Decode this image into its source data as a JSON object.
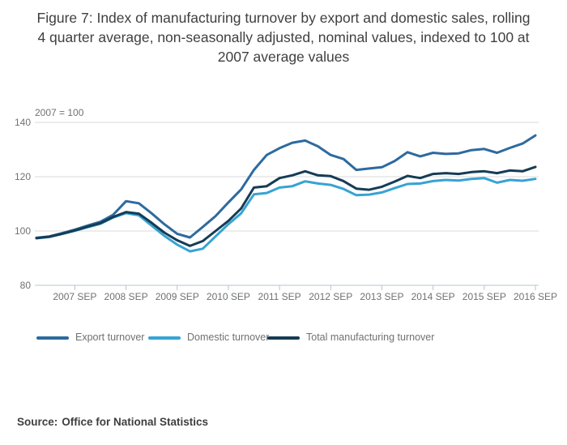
{
  "title": "Figure 7: Index of manufacturing turnover by export and domestic sales, rolling 4 quarter average, non-seasonally adjusted, nominal values, indexed to 100 at 2007 average values",
  "source": {
    "label": "Source:",
    "text": "Office for National Statistics"
  },
  "colors": {
    "export": "#2d6a9f",
    "domestic": "#37a3d4",
    "total": "#153c55",
    "grid": "#d9d9d9",
    "axis": "#b8c4ce",
    "tick_text": "#6f7173",
    "title_text": "#3e3f41"
  },
  "chart_data": {
    "type": "line",
    "title": "Figure 7: Index of manufacturing turnover by export and domestic sales, rolling 4 quarter average, non-seasonally adjusted, nominal values, indexed to 100 at 2007 average values",
    "annotation": "2007 = 100",
    "grid": "horizontal",
    "legend_position": "bottom",
    "ylim": [
      80,
      143
    ],
    "y_ticks": [
      140,
      120,
      100,
      80
    ],
    "x_tick_labels": [
      "2007 SEP",
      "2008 SEP",
      "2009 SEP",
      "2010 SEP",
      "2011 SEP",
      "2012 SEP",
      "2013 SEP",
      "2014 SEP",
      "2015 SEP",
      "2016 SEP"
    ],
    "x": [
      "2006 DEC",
      "2007 MAR",
      "2007 JUN",
      "2007 SEP",
      "2007 DEC",
      "2008 MAR",
      "2008 JUN",
      "2008 SEP",
      "2008 DEC",
      "2009 MAR",
      "2009 JUN",
      "2009 SEP",
      "2009 DEC",
      "2010 MAR",
      "2010 JUN",
      "2010 SEP",
      "2010 DEC",
      "2011 MAR",
      "2011 JUN",
      "2011 SEP",
      "2011 DEC",
      "2012 MAR",
      "2012 JUN",
      "2012 SEP",
      "2012 DEC",
      "2013 MAR",
      "2013 JUN",
      "2013 SEP",
      "2013 DEC",
      "2014 MAR",
      "2014 JUN",
      "2014 SEP",
      "2014 DEC",
      "2015 MAR",
      "2015 JUN",
      "2015 SEP",
      "2015 DEC",
      "2016 MAR",
      "2016 JUN",
      "2016 SEP"
    ],
    "series": [
      {
        "name": "Export turnover",
        "color": "#2d6a9f",
        "values": [
          97.5,
          98.0,
          99.2,
          100.5,
          102.0,
          103.4,
          106.0,
          111.0,
          110.2,
          106.5,
          102.5,
          99.0,
          97.6,
          101.5,
          105.5,
          110.5,
          115.3,
          122.5,
          128.0,
          130.5,
          132.5,
          133.3,
          131.2,
          128.0,
          126.5,
          122.5,
          123.0,
          123.5,
          125.8,
          129.0,
          127.5,
          128.8,
          128.4,
          128.6,
          129.8,
          130.2,
          128.8,
          130.6,
          132.2,
          135.2
        ]
      },
      {
        "name": "Domestic turnover",
        "color": "#37a3d4",
        "values": [
          97.3,
          97.8,
          98.9,
          100.1,
          101.4,
          102.7,
          105.0,
          106.6,
          105.8,
          102.0,
          98.2,
          95.0,
          92.5,
          93.5,
          98.0,
          102.5,
          106.5,
          113.5,
          114.0,
          116.0,
          116.5,
          118.3,
          117.5,
          117.0,
          115.5,
          113.2,
          113.4,
          114.2,
          115.8,
          117.3,
          117.5,
          118.4,
          118.8,
          118.6,
          119.2,
          119.5,
          117.8,
          118.8,
          118.5,
          119.2
        ]
      },
      {
        "name": "Total manufacturing turnover",
        "color": "#153c55",
        "values": [
          97.4,
          97.9,
          99.0,
          100.2,
          101.6,
          102.9,
          105.2,
          107.0,
          106.4,
          103.0,
          99.4,
          96.6,
          94.5,
          96.3,
          100.0,
          103.7,
          108.3,
          116.0,
          116.5,
          119.5,
          120.5,
          122.0,
          120.5,
          120.2,
          118.4,
          115.6,
          115.2,
          116.3,
          118.2,
          120.3,
          119.5,
          121.0,
          121.3,
          121.0,
          121.7,
          122.0,
          121.3,
          122.3,
          122.0,
          123.6
        ]
      }
    ]
  }
}
